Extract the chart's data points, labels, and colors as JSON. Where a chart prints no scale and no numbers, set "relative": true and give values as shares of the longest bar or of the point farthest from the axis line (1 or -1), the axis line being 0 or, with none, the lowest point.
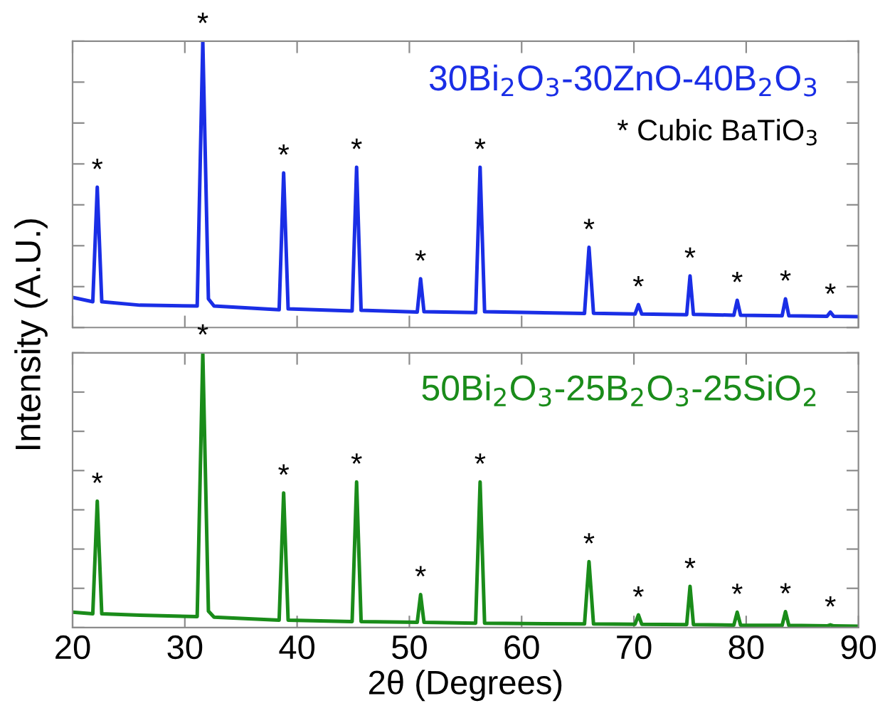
{
  "chart_data": [
    {
      "type": "line",
      "relative": true,
      "ylabel": "Intensity (A.U.)",
      "xlim": [
        20,
        90
      ],
      "xticks": [
        20,
        30,
        40,
        50,
        60,
        70,
        80,
        90
      ],
      "tick_labels": false,
      "legend": false,
      "series": [
        {
          "name": "30Bi$_{2}$O$_{3}$-30ZnO-40B$_{2}$O$_{3}$",
          "color": "#1a2ee6",
          "x": [
            20,
            21.8,
            22.2,
            22.6,
            26,
            31.1,
            31.6,
            32.1,
            32.6,
            38.4,
            38.8,
            39.2,
            44.9,
            45.3,
            45.7,
            50.7,
            51.0,
            51.3,
            55.9,
            56.3,
            56.7,
            65.6,
            66.0,
            66.4,
            70.1,
            70.4,
            70.7,
            74.7,
            75.0,
            75.3,
            78.9,
            79.2,
            79.5,
            83.2,
            83.5,
            83.8,
            87.2,
            87.5,
            87.8,
            90
          ],
          "values": [
            0.105,
            0.09,
            0.49,
            0.09,
            0.078,
            0.075,
            1.0,
            0.1,
            0.075,
            0.062,
            0.54,
            0.065,
            0.058,
            0.56,
            0.06,
            0.054,
            0.17,
            0.055,
            0.052,
            0.56,
            0.055,
            0.049,
            0.28,
            0.05,
            0.047,
            0.08,
            0.047,
            0.045,
            0.18,
            0.046,
            0.043,
            0.095,
            0.043,
            0.041,
            0.1,
            0.041,
            0.039,
            0.054,
            0.039,
            0.038
          ]
        }
      ],
      "annotations": [
        "* Cubic BaTiO$_{3}$",
        {
          "text": "*",
          "x": 22.2,
          "y": 0.49
        },
        {
          "text": "*",
          "x": 31.6,
          "y": 1.0
        },
        {
          "text": "*",
          "x": 38.8,
          "y": 0.54
        },
        {
          "text": "*",
          "x": 45.3,
          "y": 0.56
        },
        {
          "text": "*",
          "x": 51.0,
          "y": 0.17
        },
        {
          "text": "*",
          "x": 56.3,
          "y": 0.56
        },
        {
          "text": "*",
          "x": 66.0,
          "y": 0.28
        },
        {
          "text": "*",
          "x": 70.4,
          "y": 0.08
        },
        {
          "text": "*",
          "x": 75.0,
          "y": 0.18
        },
        {
          "text": "*",
          "x": 79.2,
          "y": 0.095
        },
        {
          "text": "*",
          "x": 83.5,
          "y": 0.1
        },
        {
          "text": "*",
          "x": 87.5,
          "y": 0.054
        }
      ]
    },
    {
      "type": "line",
      "relative": true,
      "xlabel": "2θ (Degrees)",
      "xlim": [
        20,
        90
      ],
      "xticks": [
        20,
        30,
        40,
        50,
        60,
        70,
        80,
        90
      ],
      "tick_labels": "x",
      "legend": false,
      "series": [
        {
          "name": "50Bi$_{2}$O$_{3}$-25B$_{2}$O$_{3}$-25SiO$_{2}$",
          "color": "#1a8c1a",
          "x": [
            20,
            21.8,
            22.2,
            22.6,
            26,
            31.1,
            31.6,
            32.1,
            32.6,
            38.4,
            38.8,
            39.2,
            44.9,
            45.3,
            45.7,
            50.7,
            51.0,
            51.3,
            55.9,
            56.3,
            56.7,
            65.6,
            66.0,
            66.4,
            70.1,
            70.4,
            70.7,
            74.7,
            75.0,
            75.3,
            78.9,
            79.2,
            79.5,
            83.2,
            83.5,
            83.8,
            87.2,
            87.5,
            87.8,
            90
          ],
          "values": [
            0.056,
            0.05,
            0.46,
            0.05,
            0.045,
            0.04,
            1.0,
            0.06,
            0.038,
            0.027,
            0.49,
            0.027,
            0.022,
            0.53,
            0.022,
            0.019,
            0.12,
            0.019,
            0.016,
            0.53,
            0.016,
            0.013,
            0.24,
            0.013,
            0.012,
            0.046,
            0.012,
            0.011,
            0.15,
            0.011,
            0.009,
            0.056,
            0.009,
            0.008,
            0.058,
            0.008,
            0.006,
            0.01,
            0.006,
            0.005
          ]
        }
      ],
      "annotations": [
        {
          "text": "*",
          "x": 22.2,
          "y": 0.46
        },
        {
          "text": "*",
          "x": 31.6,
          "y": 1.0
        },
        {
          "text": "*",
          "x": 38.8,
          "y": 0.49
        },
        {
          "text": "*",
          "x": 45.3,
          "y": 0.53
        },
        {
          "text": "*",
          "x": 51.0,
          "y": 0.12
        },
        {
          "text": "*",
          "x": 56.3,
          "y": 0.53
        },
        {
          "text": "*",
          "x": 66.0,
          "y": 0.24
        },
        {
          "text": "*",
          "x": 70.4,
          "y": 0.046
        },
        {
          "text": "*",
          "x": 75.0,
          "y": 0.15
        },
        {
          "text": "*",
          "x": 79.2,
          "y": 0.056
        },
        {
          "text": "*",
          "x": 83.5,
          "y": 0.058
        },
        {
          "text": "*",
          "x": 87.5,
          "y": 0.01
        }
      ]
    }
  ]
}
